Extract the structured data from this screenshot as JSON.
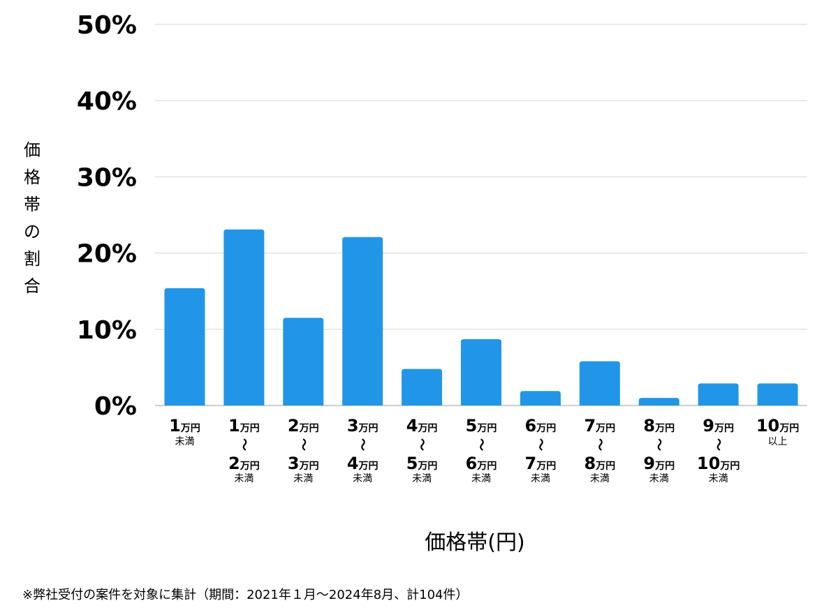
{
  "chart_data": {
    "type": "bar",
    "title": "",
    "xlabel": "価格帯(円)",
    "ylabel": "価格帯の割合",
    "ylim": [
      0,
      50
    ],
    "yticks": [
      "0%",
      "10%",
      "20%",
      "30%",
      "40%",
      "50%"
    ],
    "grid": true,
    "bar_color": "#2196e8",
    "unit_text": "万円",
    "tilde_text": "〜",
    "categories": [
      {
        "from": "1",
        "to": "",
        "note": "未満"
      },
      {
        "from": "1",
        "to": "2",
        "note": "未満"
      },
      {
        "from": "2",
        "to": "3",
        "note": "未満"
      },
      {
        "from": "3",
        "to": "4",
        "note": "未満"
      },
      {
        "from": "4",
        "to": "5",
        "note": "未満"
      },
      {
        "from": "5",
        "to": "6",
        "note": "未満"
      },
      {
        "from": "6",
        "to": "7",
        "note": "未満"
      },
      {
        "from": "7",
        "to": "8",
        "note": "未満"
      },
      {
        "from": "8",
        "to": "9",
        "note": "未満"
      },
      {
        "from": "9",
        "to": "10",
        "note": "未満"
      },
      {
        "from": "10",
        "to": "",
        "note": "以上"
      }
    ],
    "values": [
      15.4,
      23.1,
      11.5,
      22.1,
      4.8,
      8.7,
      1.9,
      5.8,
      1.0,
      2.9,
      2.9
    ]
  },
  "footnote": "※弊社受付の案件を対象に集計（期間：2021年１月〜2024年8月、計104件）"
}
